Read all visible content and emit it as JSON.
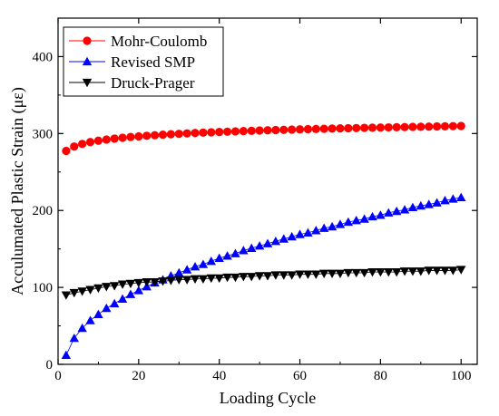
{
  "chart_data": {
    "type": "line",
    "xlabel": "Loading Cycle",
    "ylabel": "Acculumated Plastic Strain (με)",
    "xlim": [
      0,
      104
    ],
    "ylim": [
      0,
      450
    ],
    "xticks": [
      0,
      20,
      40,
      60,
      80,
      100
    ],
    "yticks": [
      0,
      100,
      200,
      300,
      400
    ],
    "grid": false,
    "legend_position": "top-left",
    "x": [
      2,
      4,
      6,
      8,
      10,
      12,
      14,
      16,
      18,
      20,
      22,
      24,
      26,
      28,
      30,
      32,
      34,
      36,
      38,
      40,
      42,
      44,
      46,
      48,
      50,
      52,
      54,
      56,
      58,
      60,
      62,
      64,
      66,
      68,
      70,
      72,
      74,
      76,
      78,
      80,
      82,
      84,
      86,
      88,
      90,
      92,
      94,
      96,
      98,
      100
    ],
    "series": [
      {
        "name": "Mohr-Coulomb",
        "color": "#ff0000",
        "marker": "circle",
        "values": [
          277.4,
          283.1,
          286.5,
          288.9,
          290.7,
          292.2,
          293.4,
          294.5,
          295.5,
          296.3,
          297.1,
          297.8,
          298.5,
          299.1,
          299.6,
          300.2,
          300.7,
          301.2,
          301.6,
          302.0,
          302.4,
          302.8,
          303.2,
          303.5,
          303.9,
          304.2,
          304.5,
          304.8,
          305.1,
          305.4,
          305.7,
          305.9,
          306.2,
          306.4,
          306.7,
          306.9,
          307.1,
          307.4,
          307.6,
          307.8,
          308.0,
          308.2,
          308.4,
          308.6,
          308.8,
          309.0,
          309.2,
          309.4,
          309.6,
          309.8
        ]
      },
      {
        "name": "Revised SMP",
        "color": "#0000ff",
        "marker": "triangle-up",
        "values": [
          12,
          34,
          47,
          57,
          65,
          73,
          79,
          85,
          91,
          96,
          101,
          106,
          110,
          115,
          119,
          123,
          127,
          130,
          134,
          138,
          141,
          144,
          148,
          151,
          154,
          157,
          160,
          163,
          166,
          169,
          171,
          174,
          177,
          179,
          182,
          185,
          187,
          189,
          192,
          194,
          197,
          199,
          201,
          204,
          206,
          208,
          210,
          213,
          215,
          217
        ]
      },
      {
        "name": "Druck-Prager",
        "color": "#000000",
        "marker": "triangle-down",
        "values": [
          90,
          93,
          95,
          97,
          99,
          101,
          102,
          104,
          105,
          106,
          107,
          107,
          108,
          109,
          110,
          110,
          111,
          111,
          112,
          112,
          113,
          113,
          114,
          114,
          115,
          115,
          116,
          116,
          116,
          117,
          117,
          117,
          118,
          118,
          118,
          119,
          119,
          119,
          120,
          120,
          120,
          120,
          121,
          121,
          121,
          122,
          122,
          122,
          122,
          123
        ]
      }
    ]
  }
}
